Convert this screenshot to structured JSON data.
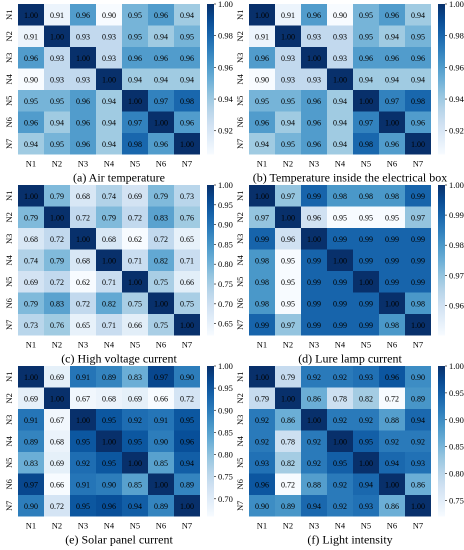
{
  "chart_data": [
    {
      "type": "heatmap",
      "caption": "(a) Air temperature",
      "categories": [
        "N1",
        "N2",
        "N3",
        "N4",
        "N5",
        "N6",
        "N7"
      ],
      "values": [
        [
          1.0,
          0.91,
          0.96,
          0.9,
          0.95,
          0.96,
          0.94
        ],
        [
          0.91,
          1.0,
          0.93,
          0.93,
          0.95,
          0.94,
          0.95
        ],
        [
          0.96,
          0.93,
          1.0,
          0.93,
          0.96,
          0.96,
          0.96
        ],
        [
          0.9,
          0.93,
          0.93,
          1.0,
          0.94,
          0.94,
          0.94
        ],
        [
          0.95,
          0.95,
          0.96,
          0.94,
          1.0,
          0.97,
          0.98
        ],
        [
          0.96,
          0.94,
          0.96,
          0.94,
          0.97,
          1.0,
          0.96
        ],
        [
          0.94,
          0.95,
          0.96,
          0.94,
          0.98,
          0.96,
          1.0
        ]
      ],
      "colorbar_ticks": [
        "1.00",
        "0.98",
        "0.96",
        "0.94",
        "0.92"
      ],
      "crange": [
        0.905,
        1.0
      ],
      "cbar_ticks_values": [
        1.0,
        0.98,
        0.96,
        0.94,
        0.92
      ]
    },
    {
      "type": "heatmap",
      "caption": "(b) Temperature inside the electrical box",
      "categories": [
        "N1",
        "N2",
        "N3",
        "N4",
        "N5",
        "N6",
        "N7"
      ],
      "values": [
        [
          1.0,
          0.91,
          0.96,
          0.9,
          0.95,
          0.96,
          0.94
        ],
        [
          0.91,
          1.0,
          0.93,
          0.93,
          0.95,
          0.94,
          0.95
        ],
        [
          0.96,
          0.93,
          1.0,
          0.93,
          0.96,
          0.96,
          0.96
        ],
        [
          0.9,
          0.93,
          0.93,
          1.0,
          0.94,
          0.94,
          0.94
        ],
        [
          0.95,
          0.95,
          0.96,
          0.94,
          1.0,
          0.97,
          0.98
        ],
        [
          0.96,
          0.94,
          0.96,
          0.94,
          0.97,
          1.0,
          0.96
        ],
        [
          0.94,
          0.95,
          0.96,
          0.94,
          0.98,
          0.96,
          1.0
        ]
      ],
      "colorbar_ticks": [
        "1.00",
        "0.98",
        "0.96",
        "0.94",
        "0.92"
      ],
      "crange": [
        0.905,
        1.0
      ],
      "cbar_ticks_values": [
        1.0,
        0.98,
        0.96,
        0.94,
        0.92
      ]
    },
    {
      "type": "heatmap",
      "caption": "(c) High voltage current",
      "categories": [
        "N1",
        "N2",
        "N3",
        "N4",
        "N5",
        "N6",
        "N7"
      ],
      "values": [
        [
          1.0,
          0.79,
          0.68,
          0.74,
          0.69,
          0.79,
          0.73
        ],
        [
          0.79,
          1.0,
          0.72,
          0.79,
          0.72,
          0.83,
          0.76
        ],
        [
          0.68,
          0.72,
          1.0,
          0.68,
          0.62,
          0.72,
          0.65
        ],
        [
          0.74,
          0.79,
          0.68,
          1.0,
          0.71,
          0.82,
          0.71
        ],
        [
          0.69,
          0.72,
          0.62,
          0.71,
          1.0,
          0.75,
          0.66
        ],
        [
          0.79,
          0.83,
          0.72,
          0.82,
          0.75,
          1.0,
          0.75
        ],
        [
          0.73,
          0.76,
          0.65,
          0.71,
          0.66,
          0.75,
          1.0
        ]
      ],
      "colorbar_ticks": [
        "1.00",
        "0.95",
        "0.90",
        "0.85",
        "0.80",
        "0.75",
        "0.70",
        "0.65"
      ],
      "crange": [
        0.62,
        1.0
      ],
      "cbar_ticks_values": [
        1.0,
        0.95,
        0.9,
        0.85,
        0.8,
        0.75,
        0.7,
        0.65
      ]
    },
    {
      "type": "heatmap",
      "caption": "(d) Lure lamp current",
      "categories": [
        "N1",
        "N2",
        "N3",
        "N4",
        "N5",
        "N6",
        "N7"
      ],
      "values": [
        [
          1.0,
          0.97,
          0.99,
          0.98,
          0.98,
          0.98,
          0.99
        ],
        [
          0.97,
          1.0,
          0.96,
          0.95,
          0.95,
          0.95,
          0.97
        ],
        [
          0.99,
          0.96,
          1.0,
          0.99,
          0.99,
          0.99,
          0.99
        ],
        [
          0.98,
          0.95,
          0.99,
          1.0,
          0.99,
          0.99,
          0.99
        ],
        [
          0.98,
          0.95,
          0.99,
          0.99,
          1.0,
          0.99,
          0.99
        ],
        [
          0.98,
          0.95,
          0.99,
          0.99,
          0.99,
          1.0,
          0.98
        ],
        [
          0.99,
          0.97,
          0.99,
          0.99,
          0.99,
          0.98,
          1.0
        ]
      ],
      "colorbar_ticks": [
        "1.00",
        "0.99",
        "0.98",
        "0.97",
        "0.96"
      ],
      "crange": [
        0.95,
        1.0
      ],
      "cbar_ticks_values": [
        1.0,
        0.99,
        0.98,
        0.97,
        0.96
      ]
    },
    {
      "type": "heatmap",
      "caption": "(e) Solar panel current",
      "categories": [
        "N1",
        "N2",
        "N3",
        "N4",
        "N5",
        "N6",
        "N7"
      ],
      "values": [
        [
          1.0,
          0.69,
          0.91,
          0.89,
          0.83,
          0.97,
          0.9
        ],
        [
          0.69,
          1.0,
          0.67,
          0.68,
          0.69,
          0.66,
          0.72
        ],
        [
          0.91,
          0.67,
          1.0,
          0.95,
          0.92,
          0.91,
          0.95
        ],
        [
          0.89,
          0.68,
          0.95,
          1.0,
          0.95,
          0.9,
          0.96
        ],
        [
          0.83,
          0.69,
          0.92,
          0.95,
          1.0,
          0.85,
          0.94
        ],
        [
          0.97,
          0.66,
          0.91,
          0.9,
          0.85,
          1.0,
          0.89
        ],
        [
          0.9,
          0.72,
          0.95,
          0.96,
          0.94,
          0.89,
          1.0
        ]
      ],
      "colorbar_ticks": [
        "1.00",
        "0.95",
        "0.90",
        "0.85",
        "0.80",
        "0.75",
        "0.70"
      ],
      "crange": [
        0.66,
        1.0
      ],
      "cbar_ticks_values": [
        1.0,
        0.95,
        0.9,
        0.85,
        0.8,
        0.75,
        0.7
      ]
    },
    {
      "type": "heatmap",
      "caption": "(f) Light intensity",
      "categories": [
        "N1",
        "N2",
        "N3",
        "N4",
        "N5",
        "N6",
        "N7"
      ],
      "values": [
        [
          1.0,
          0.79,
          0.92,
          0.92,
          0.93,
          0.96,
          0.9
        ],
        [
          0.79,
          1.0,
          0.86,
          0.78,
          0.82,
          0.72,
          0.89
        ],
        [
          0.92,
          0.86,
          1.0,
          0.92,
          0.92,
          0.88,
          0.94
        ],
        [
          0.92,
          0.78,
          0.92,
          1.0,
          0.95,
          0.92,
          0.92
        ],
        [
          0.93,
          0.82,
          0.92,
          0.95,
          1.0,
          0.94,
          0.93
        ],
        [
          0.96,
          0.72,
          0.88,
          0.92,
          0.94,
          1.0,
          0.86
        ],
        [
          0.9,
          0.89,
          0.94,
          0.92,
          0.93,
          0.86,
          1.0
        ]
      ],
      "colorbar_ticks": [
        "1.00",
        "0.95",
        "0.90",
        "0.85",
        "0.80",
        "0.75"
      ],
      "crange": [
        0.72,
        1.0
      ],
      "cbar_ticks_values": [
        1.0,
        0.95,
        0.9,
        0.85,
        0.8,
        0.75
      ]
    }
  ]
}
